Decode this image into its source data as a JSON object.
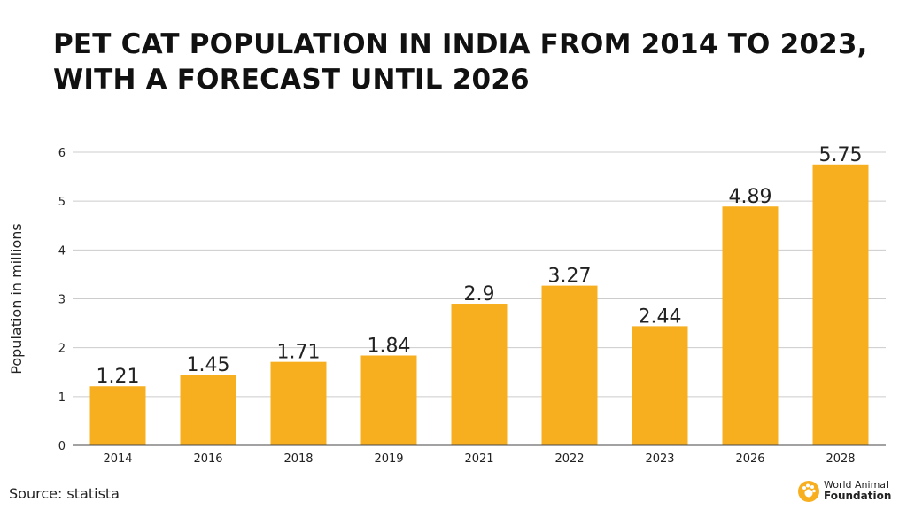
{
  "chart_data": {
    "type": "bar",
    "title_line1": "PET CAT POPULATION IN INDIA FROM 2014 TO 2023,",
    "title_line2": "WITH A FORECAST UNTIL 2026",
    "categories": [
      "2014",
      "2016",
      "2018",
      "2019",
      "2021",
      "2022",
      "2023",
      "2026",
      "2028"
    ],
    "values": [
      1.21,
      1.45,
      1.71,
      1.84,
      2.9,
      3.27,
      2.44,
      4.89,
      5.75
    ],
    "value_labels": [
      "1.21",
      "1.45",
      "1.71",
      "1.84",
      "2.9",
      "3.27",
      "2.44",
      "4.89",
      "5.75"
    ],
    "xlabel": "",
    "ylabel": "Population in millions",
    "ylim": [
      0,
      6
    ],
    "yticks": [
      "0",
      "1",
      "2",
      "3",
      "4",
      "5",
      "6"
    ],
    "grid": true,
    "bar_color": "#F7AF1F",
    "grid_color": "#CCCCCC"
  },
  "footer": {
    "source": "Source: statista",
    "brand_line1": "World Animal",
    "brand_line2": "Foundation",
    "brand_color": "#F7AF1F"
  }
}
